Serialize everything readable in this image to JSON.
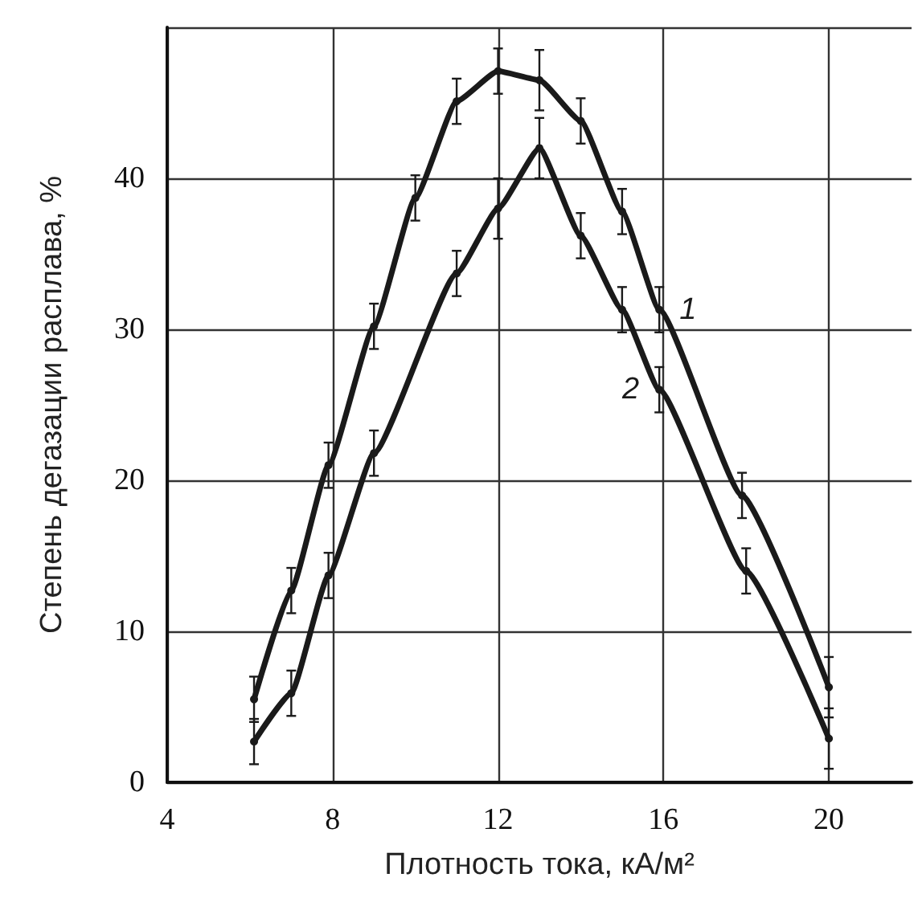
{
  "chart_data": {
    "type": "line",
    "xlabel": "Плотность тока, кА/м²",
    "ylabel": "Степень дегазации расплава, %",
    "xlim": [
      4,
      22
    ],
    "xticks": [
      4,
      8,
      12,
      16,
      20
    ],
    "ylim": [
      0,
      50
    ],
    "yticks": [
      0,
      10,
      20,
      30,
      40,
      {
        "value": 50,
        "label": null
      }
    ],
    "grid": true,
    "legend": false,
    "marker": "circle",
    "line_style": "solid",
    "series": [
      {
        "name": "1",
        "color": "#1a1a1a",
        "x": [
          6.1,
          7.0,
          7.9,
          9.0,
          10.0,
          11.0,
          12.0,
          13.0,
          14.0,
          15.0,
          15.9,
          17.9,
          20.0
        ],
        "values": [
          5.5,
          12.7,
          21,
          30.2,
          38.7,
          45.1,
          47.1,
          46.5,
          43.8,
          37.8,
          31.3,
          19.0,
          6.3
        ],
        "errors": [
          1.5,
          1.5,
          1.5,
          1.5,
          1.5,
          1.5,
          1.5,
          2,
          1.5,
          1.5,
          1.5,
          1.5,
          2
        ]
      },
      {
        "name": "2",
        "color": "#1a1a1a",
        "x": [
          6.1,
          7.0,
          7.9,
          9.0,
          11.0,
          12.0,
          13.0,
          14.0,
          15.0,
          15.9,
          18.0,
          20.0
        ],
        "values": [
          2.7,
          5.9,
          13.7,
          21.8,
          33.7,
          38.0,
          42.0,
          36.2,
          31.3,
          26.0,
          14.0,
          2.9
        ],
        "errors": [
          1.5,
          1.5,
          1.5,
          1.5,
          1.5,
          2,
          2,
          1.5,
          1.5,
          1.5,
          1.5,
          2
        ]
      }
    ]
  }
}
